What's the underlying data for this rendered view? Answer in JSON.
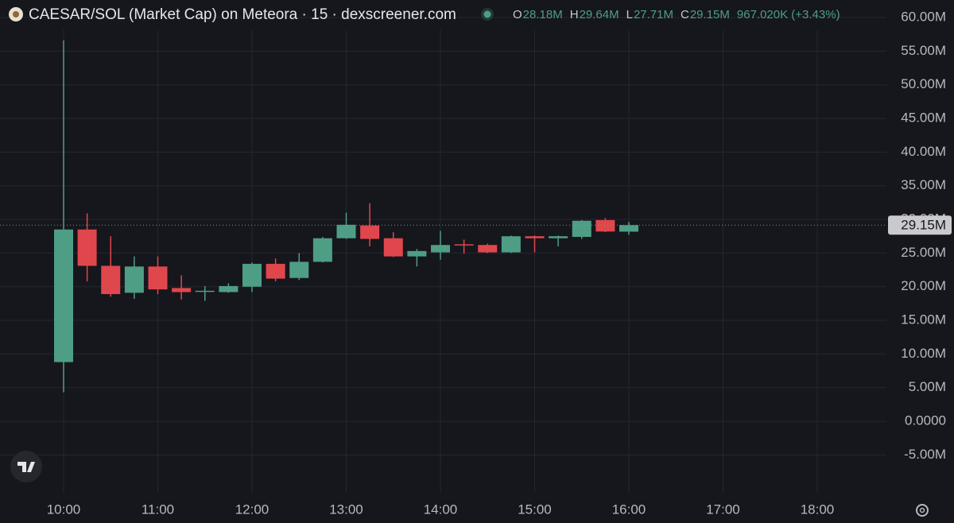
{
  "chart_data": {
    "type": "candlestick",
    "title": "CAESAR/SOL (Market Cap) on Meteora · 15 · dexscreener.com",
    "ohlc_header": [
      {
        "label": "O",
        "value": "28.18M"
      },
      {
        "label": "H",
        "value": "29.64M"
      },
      {
        "label": "L",
        "value": "27.71M"
      },
      {
        "label": "C",
        "value": "29.15M"
      }
    ],
    "change": "967.020K (+3.43%)",
    "x": [
      "10:00",
      "10:15",
      "10:30",
      "10:45",
      "11:00",
      "11:15",
      "11:30",
      "11:45",
      "12:00",
      "12:15",
      "12:30",
      "12:45",
      "13:00",
      "13:15",
      "13:30",
      "13:45",
      "14:00",
      "14:15",
      "14:30",
      "14:45",
      "15:00",
      "15:15",
      "15:30",
      "15:45",
      "16:00"
    ],
    "open": [
      8.8,
      28.5,
      23.1,
      19.1,
      23.0,
      19.8,
      19.3,
      19.2,
      20.0,
      23.4,
      21.3,
      23.7,
      27.2,
      29.1,
      27.2,
      24.5,
      25.1,
      26.3,
      26.2,
      25.1,
      27.5,
      27.2,
      27.4,
      29.9,
      28.18
    ],
    "high": [
      56.6,
      30.9,
      27.5,
      24.5,
      24.5,
      21.7,
      20.1,
      20.5,
      23.6,
      24.2,
      25.0,
      27.4,
      31.0,
      32.4,
      28.1,
      25.6,
      28.3,
      27.0,
      26.4,
      27.6,
      27.6,
      27.6,
      29.9,
      30.2,
      29.64
    ],
    "low": [
      4.3,
      20.8,
      18.5,
      18.2,
      18.9,
      18.1,
      17.9,
      19.1,
      19.2,
      20.8,
      21.0,
      23.6,
      27.1,
      26.0,
      24.4,
      23.0,
      24.0,
      24.9,
      25.0,
      25.0,
      25.1,
      26.0,
      27.1,
      28.1,
      27.71
    ],
    "close": [
      28.5,
      23.1,
      18.9,
      23.0,
      19.6,
      19.2,
      19.4,
      20.1,
      23.4,
      21.2,
      23.7,
      27.2,
      29.2,
      27.1,
      24.5,
      25.3,
      26.2,
      26.2,
      25.1,
      27.5,
      27.2,
      27.5,
      29.8,
      28.2,
      29.15
    ],
    "up_color": "#4e9e86",
    "down_color": "#e0474c",
    "ylim": [
      -8.85,
      62.6
    ],
    "yticks": [
      {
        "value": 60,
        "label": "60.00M"
      },
      {
        "value": 55,
        "label": "55.00M"
      },
      {
        "value": 50,
        "label": "50.00M"
      },
      {
        "value": 45,
        "label": "45.00M"
      },
      {
        "value": 40,
        "label": "40.00M"
      },
      {
        "value": 35,
        "label": "35.00M"
      },
      {
        "value": 30,
        "label": "30.00M"
      },
      {
        "value": 25,
        "label": "25.00M"
      },
      {
        "value": 20,
        "label": "20.00M"
      },
      {
        "value": 15,
        "label": "15.00M"
      },
      {
        "value": 10,
        "label": "10.00M"
      },
      {
        "value": 5,
        "label": "5.00M"
      },
      {
        "value": 0,
        "label": "0.0000"
      },
      {
        "value": -5,
        "label": "-5.00M"
      }
    ],
    "xticks": [
      "10:00",
      "11:00",
      "12:00",
      "13:00",
      "14:00",
      "15:00",
      "16:00",
      "17:00",
      "18:00"
    ],
    "last_price": {
      "value": 29.15,
      "label": "29.15M"
    },
    "grid": true
  }
}
